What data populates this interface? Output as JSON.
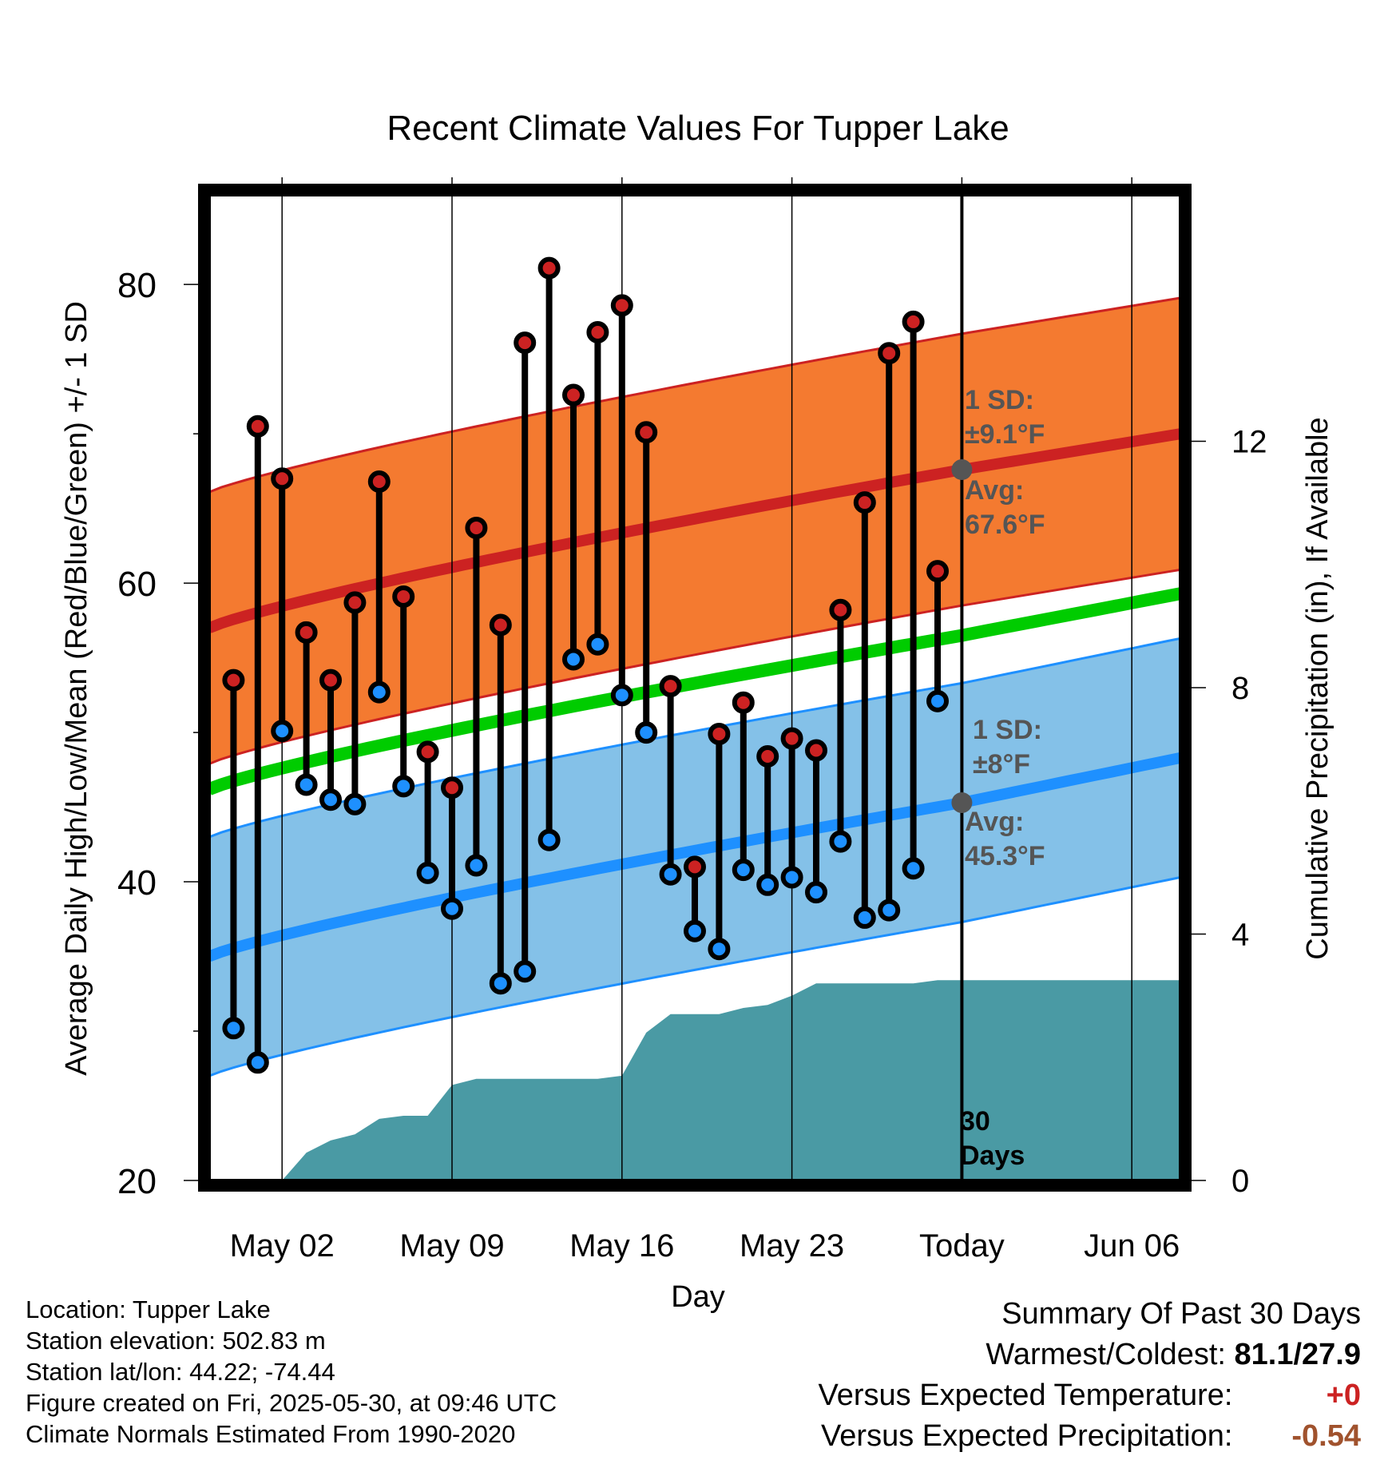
{
  "chart_data": {
    "type": "line",
    "title": "Recent Climate Values For Tupper Lake",
    "xlabel": "Day",
    "ylabel_left": "Average Daily High/Low/Mean (Red/Blue/Green) +/- 1 SD",
    "ylabel_right": "Cumulative Precipitation (in), If Available",
    "x_ticks": [
      "May 02",
      "May 09",
      "May 16",
      "May 23",
      "Today",
      "Jun 06"
    ],
    "x_tick_dates": [
      "2025-05-02",
      "2025-05-09",
      "2025-05-16",
      "2025-05-23",
      "2025-05-30",
      "2025-06-06"
    ],
    "x_range": [
      "2025-04-29",
      "2025-06-08"
    ],
    "y_left_ticks": [
      "20",
      "40",
      "60",
      "80"
    ],
    "y_left_range": [
      20,
      86
    ],
    "y_right_ticks": [
      "0",
      "4",
      "8",
      "12"
    ],
    "y_right_range": [
      0,
      16
    ],
    "grid": true,
    "daily_observations": {
      "dates": [
        "2025-04-30",
        "2025-05-01",
        "2025-05-02",
        "2025-05-03",
        "2025-05-04",
        "2025-05-05",
        "2025-05-06",
        "2025-05-07",
        "2025-05-08",
        "2025-05-09",
        "2025-05-10",
        "2025-05-11",
        "2025-05-12",
        "2025-05-13",
        "2025-05-14",
        "2025-05-15",
        "2025-05-16",
        "2025-05-17",
        "2025-05-18",
        "2025-05-19",
        "2025-05-20",
        "2025-05-21",
        "2025-05-22",
        "2025-05-23",
        "2025-05-24",
        "2025-05-25",
        "2025-05-26",
        "2025-05-27",
        "2025-05-28",
        "2025-05-29"
      ],
      "high": [
        53.5,
        70.5,
        67.0,
        56.7,
        53.5,
        58.7,
        66.8,
        59.1,
        48.7,
        46.3,
        63.7,
        57.2,
        76.1,
        81.1,
        72.6,
        76.8,
        78.6,
        70.1,
        53.1,
        41.0,
        49.9,
        52.0,
        48.4,
        49.6,
        48.8,
        58.2,
        65.4,
        75.4,
        77.5,
        60.8
      ],
      "low": [
        30.2,
        27.9,
        50.1,
        46.5,
        45.5,
        45.2,
        52.7,
        46.4,
        40.6,
        38.2,
        41.1,
        33.2,
        34.0,
        42.8,
        54.9,
        55.9,
        52.5,
        50.0,
        40.5,
        36.7,
        35.5,
        40.8,
        39.8,
        40.3,
        39.3,
        42.7,
        37.6,
        38.1,
        40.9,
        52.1
      ]
    },
    "series": [
      {
        "name": "High",
        "color": "#cc2222",
        "start": 57.0,
        "today": 67.6,
        "end": 70.0
      },
      {
        "name": "Low",
        "color": "#1e90ff",
        "start": 35.0,
        "today": 45.3,
        "end": 48.3
      },
      {
        "name": "Mean",
        "color": "#00cc00",
        "start": 46.2,
        "today": 56.5,
        "end": 59.3
      }
    ],
    "high_sd": 9.1,
    "low_sd": 8.0,
    "band_colors": {
      "high": "#f47a30",
      "low": "#84c1e8",
      "precip": "#4a9aa4"
    },
    "cumulative_precip": {
      "dates": [
        "2025-05-02",
        "2025-05-03",
        "2025-05-04",
        "2025-05-05",
        "2025-05-06",
        "2025-05-07",
        "2025-05-08",
        "2025-05-09",
        "2025-05-10",
        "2025-05-11",
        "2025-05-12",
        "2025-05-13",
        "2025-05-14",
        "2025-05-15",
        "2025-05-16",
        "2025-05-17",
        "2025-05-18",
        "2025-05-19",
        "2025-05-20",
        "2025-05-21",
        "2025-05-22",
        "2025-05-23",
        "2025-05-24",
        "2025-05-25",
        "2025-05-26",
        "2025-05-27",
        "2025-05-28",
        "2025-05-29",
        "2025-05-30",
        "2025-06-08"
      ],
      "values": [
        0.0,
        0.45,
        0.65,
        0.75,
        1.0,
        1.05,
        1.05,
        1.55,
        1.65,
        1.65,
        1.65,
        1.65,
        1.65,
        1.65,
        1.7,
        2.4,
        2.7,
        2.7,
        2.7,
        2.8,
        2.85,
        3.0,
        3.2,
        3.2,
        3.2,
        3.2,
        3.2,
        3.25,
        3.25,
        3.25
      ]
    },
    "annotations": {
      "high_sd_label": "1 SD:",
      "high_sd_value": "±9.1°F",
      "high_avg_label": "Avg:",
      "high_avg_value": "67.6°F",
      "low_sd_label": "1 SD:",
      "low_sd_value": "±8°F",
      "low_avg_label": "Avg:",
      "low_avg_value": "45.3°F",
      "days_line1": "30",
      "days_line2": "Days"
    }
  },
  "info": {
    "location": "Location: Tupper Lake",
    "elevation": "Station elevation: 502.83 m",
    "latlon": "Station lat/lon: 44.22; -74.44",
    "created": "Figure created on Fri, 2025-05-30, at 09:46 UTC",
    "normals": "Climate Normals Estimated From 1990-2020"
  },
  "summary": {
    "heading": "Summary Of Past 30 Days",
    "warmest_coldest_label": "Warmest/Coldest:",
    "warmest_coldest_value": "81.1/27.9",
    "temp_label": "Versus Expected Temperature:",
    "temp_value": "+0",
    "temp_color": "#cc2222",
    "precip_label": "Versus Expected Precipitation:",
    "precip_value": "-0.54",
    "precip_color": "#a0522d"
  }
}
